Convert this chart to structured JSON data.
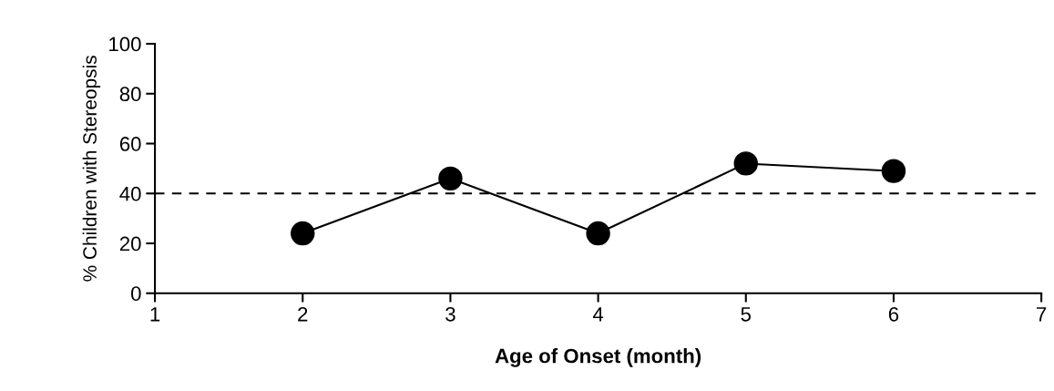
{
  "chart_data": {
    "type": "line",
    "xlabel": "Age of Onset (month)",
    "ylabel": "% Children with Stereopsis",
    "x": [
      2,
      3,
      4,
      5,
      6
    ],
    "series": [
      {
        "color": "#000000",
        "values": [
          24,
          46,
          24,
          52,
          49
        ]
      }
    ],
    "xlim": [
      1,
      7
    ],
    "xticks": [
      1,
      2,
      3,
      4,
      5,
      6,
      7
    ],
    "ylim": [
      0,
      100
    ],
    "yticks": [
      0,
      20,
      40,
      60,
      80,
      100
    ],
    "ref_lines": [
      {
        "axis": "y",
        "value": 40,
        "color": "#000000",
        "line_style": "dashed"
      }
    ],
    "marker": "circle",
    "line_style": "solid",
    "grid": false
  }
}
